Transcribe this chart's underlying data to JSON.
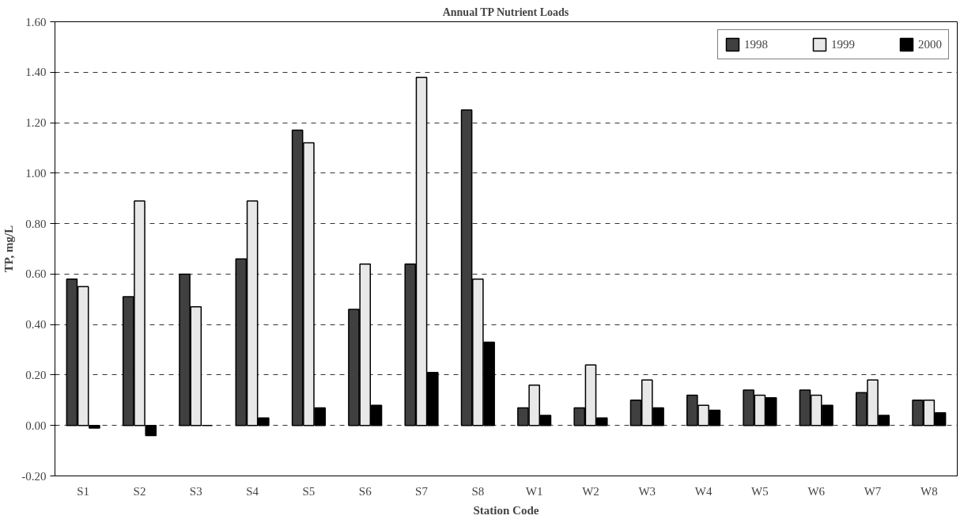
{
  "chart_data": {
    "type": "bar",
    "title": "Annual TP Nutrient Loads",
    "xlabel": "Station Code",
    "ylabel": "TP, mg/L",
    "categories": [
      "S1",
      "S2",
      "S3",
      "S4",
      "S5",
      "S6",
      "S7",
      "S8",
      "W1",
      "W2",
      "W3",
      "W4",
      "W5",
      "W6",
      "W7",
      "W8"
    ],
    "series": [
      {
        "name": "1998",
        "color": "#404040",
        "values": [
          0.58,
          0.51,
          0.6,
          0.66,
          1.17,
          0.46,
          0.64,
          1.25,
          0.07,
          0.07,
          0.1,
          0.12,
          0.14,
          0.14,
          0.13,
          0.1
        ]
      },
      {
        "name": "1999",
        "color": "#e8e8e8",
        "values": [
          0.55,
          0.89,
          0.47,
          0.89,
          1.12,
          0.64,
          1.38,
          0.58,
          0.16,
          0.24,
          0.18,
          0.08,
          0.12,
          0.12,
          0.18,
          0.1
        ]
      },
      {
        "name": "2000",
        "color": "#000000",
        "values": [
          -0.01,
          -0.04,
          0.0,
          0.03,
          0.07,
          0.08,
          0.21,
          0.33,
          0.04,
          0.03,
          0.07,
          0.06,
          0.11,
          0.08,
          0.04,
          0.05
        ]
      }
    ],
    "ylim": [
      -0.2,
      1.6
    ],
    "yticks": [
      {
        "value": -0.2,
        "label": "-0.20"
      },
      {
        "value": 0,
        "label": "0.00"
      },
      {
        "value": 0.2,
        "label": "0.20"
      },
      {
        "value": 0.4,
        "label": "0.40"
      },
      {
        "value": 0.6,
        "label": "0.60"
      },
      {
        "value": 0.8,
        "label": "0.80"
      },
      {
        "value": 1.0,
        "label": "1.00"
      },
      {
        "value": 1.2,
        "label": "1.20"
      },
      {
        "value": 1.4,
        "label": "1.40"
      },
      {
        "value": 1.6,
        "label": "1.60"
      }
    ],
    "grid": "y",
    "legend": "top right"
  }
}
